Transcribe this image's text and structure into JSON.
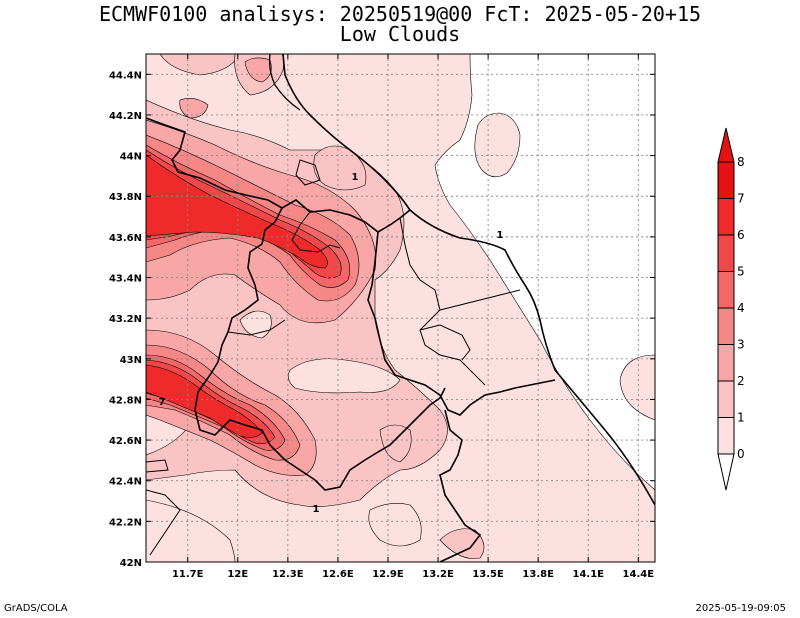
{
  "chart_data": {
    "type": "contour-map",
    "title_line1": "ECMWF0100 analisys: 20250519@00 FcT: 2025-05-20+15",
    "title_line2": "Low Clouds",
    "variable": "Low Clouds",
    "xlabel": "",
    "ylabel": "",
    "xlim": [
      11.45,
      14.5
    ],
    "ylim": [
      42.0,
      44.5
    ],
    "x_ticks": [
      "11.7E",
      "12E",
      "12.3E",
      "12.6E",
      "12.9E",
      "13.2E",
      "13.5E",
      "13.8E",
      "14.1E",
      "14.4E"
    ],
    "x_tick_values": [
      11.7,
      12.0,
      12.3,
      12.6,
      12.9,
      13.2,
      13.5,
      13.8,
      14.1,
      14.4
    ],
    "y_ticks": [
      "42N",
      "42.2N",
      "42.4N",
      "42.6N",
      "42.8N",
      "43N",
      "43.2N",
      "43.4N",
      "43.6N",
      "43.8N",
      "44N",
      "44.2N",
      "44.4N"
    ],
    "y_tick_values": [
      42.0,
      42.2,
      42.4,
      42.6,
      42.8,
      43.0,
      43.2,
      43.4,
      43.6,
      43.8,
      44.0,
      44.2,
      44.4
    ],
    "grid": true,
    "contour_labels": [
      "1",
      "1",
      "1",
      "7"
    ],
    "colorbar": {
      "levels": [
        "0",
        "1",
        "2",
        "3",
        "4",
        "5",
        "6",
        "7",
        "8"
      ],
      "colors": [
        "#ffffff",
        "#fde0e0",
        "#fbc4c4",
        "#f8a6a6",
        "#f58787",
        "#f26767",
        "#f04848",
        "#ee2a2a",
        "#e41212"
      ],
      "placement": "right"
    }
  },
  "footer": {
    "left": "GrADS/COLA",
    "right": "2025-05-19-09:05"
  }
}
